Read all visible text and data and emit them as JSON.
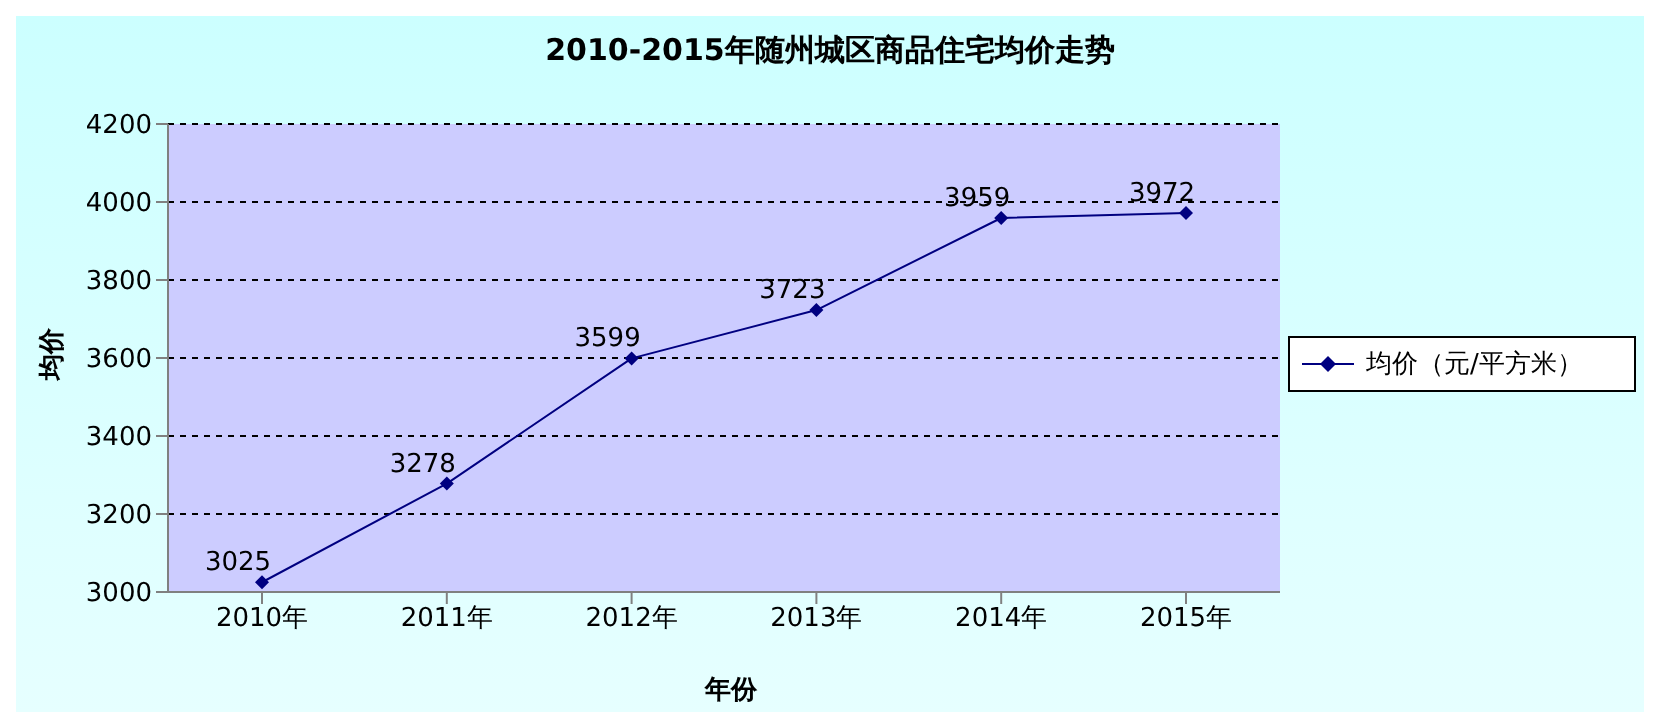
{
  "chart_data": {
    "type": "line",
    "title": "2010-2015年随州城区商品住宅均价走势",
    "xlabel": "年份",
    "ylabel": "均价",
    "categories": [
      "2010年",
      "2011年",
      "2012年",
      "2013年",
      "2014年",
      "2015年"
    ],
    "series": [
      {
        "name": "均价（元/平方米）",
        "color": "#000080",
        "values": [
          3025,
          3278,
          3599,
          3723,
          3959,
          3972
        ]
      }
    ],
    "ylim": [
      3000,
      4200
    ],
    "yticks": [
      3000,
      3200,
      3400,
      3600,
      3800,
      4000,
      4200
    ],
    "grid": "y",
    "legend": "right",
    "marker": "diamond",
    "line_style": "solid",
    "data_labels": true
  }
}
